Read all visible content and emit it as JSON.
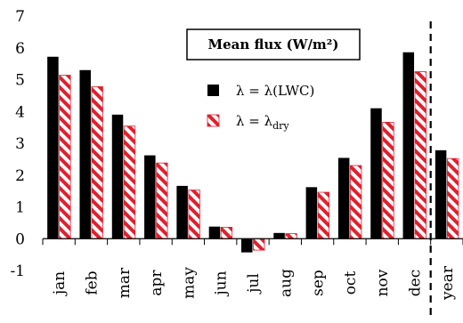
{
  "chart_data": {
    "type": "bar",
    "title": "Mean flux (W/m²)",
    "categories": [
      "jan",
      "feb",
      "mar",
      "apr",
      "may",
      "jun",
      "jul",
      "aug",
      "sep",
      "oct",
      "nov",
      "dec",
      "year"
    ],
    "ylim": [
      -1,
      7
    ],
    "yticks": [
      -1,
      0,
      1,
      2,
      3,
      4,
      5,
      6,
      7
    ],
    "legend_position": "top-right (inside plot, below title)",
    "series": [
      {
        "name": "λ = λ(LWC)",
        "legend_prefix": "λ = λ(LWC)",
        "color": "#000000",
        "pattern": "solid",
        "values": [
          5.72,
          5.3,
          3.9,
          2.62,
          1.66,
          0.38,
          -0.43,
          0.18,
          1.62,
          2.54,
          4.1,
          5.86,
          2.78
        ]
      },
      {
        "name": "λ = λdry",
        "legend_prefix": "λ = λ",
        "legend_subscript": "dry",
        "color": "#e0202e",
        "pattern": "red-white diagonal stripes",
        "values": [
          5.14,
          4.78,
          3.54,
          2.38,
          1.53,
          0.36,
          -0.36,
          0.16,
          1.46,
          2.3,
          3.66,
          5.25,
          2.52
        ]
      }
    ],
    "annotations": [
      {
        "type": "dashed-vertical-line",
        "between": [
          "dec",
          "year"
        ]
      }
    ]
  }
}
